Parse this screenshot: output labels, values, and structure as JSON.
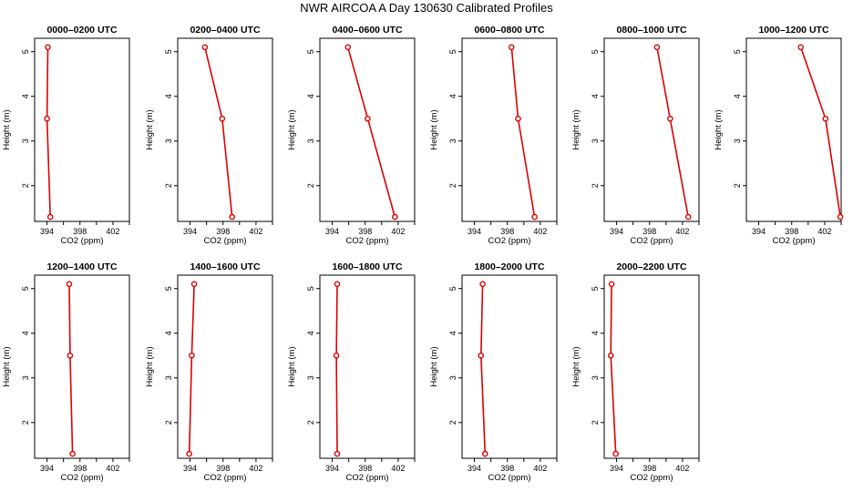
{
  "title": "NWR AIRCOA A  Day 130630  Calibrated Profiles",
  "colors": {
    "series": "#dd0000",
    "axis": "#000000"
  },
  "chart_data": [
    {
      "type": "line",
      "title": "0000–0200 UTC",
      "xlabel": "CO2 (ppm)",
      "ylabel": "Height (m)",
      "xlim": [
        392.5,
        404
      ],
      "ylim": [
        1.2,
        5.3
      ],
      "xticks": [
        394,
        398,
        402
      ],
      "yticks": [
        2,
        3,
        4,
        5
      ],
      "grid": false,
      "series": [
        {
          "x": [
            394.1,
            394.0,
            394.4
          ],
          "y": [
            5.1,
            3.5,
            1.3
          ]
        }
      ]
    },
    {
      "type": "line",
      "title": "0200–0400 UTC",
      "xlabel": "CO2 (ppm)",
      "ylabel": "Height (m)",
      "xlim": [
        392.5,
        404
      ],
      "ylim": [
        1.2,
        5.3
      ],
      "xticks": [
        394,
        398,
        402
      ],
      "yticks": [
        2,
        3,
        4,
        5
      ],
      "grid": false,
      "series": [
        {
          "x": [
            395.8,
            397.9,
            399.1
          ],
          "y": [
            5.1,
            3.5,
            1.3
          ]
        }
      ]
    },
    {
      "type": "line",
      "title": "0400–0600 UTC",
      "xlabel": "CO2 (ppm)",
      "ylabel": "Height (m)",
      "xlim": [
        392.5,
        404
      ],
      "ylim": [
        1.2,
        5.3
      ],
      "xticks": [
        394,
        398,
        402
      ],
      "yticks": [
        2,
        3,
        4,
        5
      ],
      "grid": false,
      "series": [
        {
          "x": [
            395.9,
            398.3,
            401.6
          ],
          "y": [
            5.1,
            3.5,
            1.3
          ]
        }
      ]
    },
    {
      "type": "line",
      "title": "0600–0800 UTC",
      "xlabel": "CO2 (ppm)",
      "ylabel": "Height (m)",
      "xlim": [
        392.5,
        404
      ],
      "ylim": [
        1.2,
        5.3
      ],
      "xticks": [
        394,
        398,
        402
      ],
      "yticks": [
        2,
        3,
        4,
        5
      ],
      "grid": false,
      "series": [
        {
          "x": [
            398.5,
            399.3,
            401.3
          ],
          "y": [
            5.1,
            3.5,
            1.3
          ]
        }
      ]
    },
    {
      "type": "line",
      "title": "0800–1000 UTC",
      "xlabel": "CO2 (ppm)",
      "ylabel": "Height (m)",
      "xlim": [
        392.5,
        404
      ],
      "ylim": [
        1.2,
        5.3
      ],
      "xticks": [
        394,
        398,
        402
      ],
      "yticks": [
        2,
        3,
        4,
        5
      ],
      "grid": false,
      "series": [
        {
          "x": [
            398.9,
            400.5,
            402.7
          ],
          "y": [
            5.1,
            3.5,
            1.3
          ]
        }
      ]
    },
    {
      "type": "line",
      "title": "1000–1200 UTC",
      "xlabel": "CO2 (ppm)",
      "ylabel": "Height (m)",
      "xlim": [
        392.5,
        404
      ],
      "ylim": [
        1.2,
        5.3
      ],
      "xticks": [
        394,
        398,
        402
      ],
      "yticks": [
        2,
        3,
        4,
        5
      ],
      "grid": false,
      "series": [
        {
          "x": [
            399.1,
            402.1,
            403.9
          ],
          "y": [
            5.1,
            3.5,
            1.3
          ]
        }
      ]
    },
    {
      "type": "line",
      "title": "1200–1400 UTC",
      "xlabel": "CO2 (ppm)",
      "ylabel": "Height (m)",
      "xlim": [
        392.5,
        404
      ],
      "ylim": [
        1.2,
        5.3
      ],
      "xticks": [
        394,
        398,
        402
      ],
      "yticks": [
        2,
        3,
        4,
        5
      ],
      "grid": false,
      "series": [
        {
          "x": [
            396.7,
            396.8,
            397.1
          ],
          "y": [
            5.1,
            3.5,
            1.3
          ]
        }
      ]
    },
    {
      "type": "line",
      "title": "1400–1600 UTC",
      "xlabel": "CO2 (ppm)",
      "ylabel": "Height (m)",
      "xlim": [
        392.5,
        404
      ],
      "ylim": [
        1.2,
        5.3
      ],
      "xticks": [
        394,
        398,
        402
      ],
      "yticks": [
        2,
        3,
        4,
        5
      ],
      "grid": false,
      "series": [
        {
          "x": [
            394.5,
            394.2,
            393.9
          ],
          "y": [
            5.1,
            3.5,
            1.3
          ]
        }
      ]
    },
    {
      "type": "line",
      "title": "1600–1800 UTC",
      "xlabel": "CO2 (ppm)",
      "ylabel": "Height (m)",
      "xlim": [
        392.5,
        404
      ],
      "ylim": [
        1.2,
        5.3
      ],
      "xticks": [
        394,
        398,
        402
      ],
      "yticks": [
        2,
        3,
        4,
        5
      ],
      "grid": false,
      "series": [
        {
          "x": [
            394.6,
            394.5,
            394.6
          ],
          "y": [
            5.1,
            3.5,
            1.3
          ]
        }
      ]
    },
    {
      "type": "line",
      "title": "1800–2000 UTC",
      "xlabel": "CO2 (ppm)",
      "ylabel": "Height (m)",
      "xlim": [
        392.5,
        404
      ],
      "ylim": [
        1.2,
        5.3
      ],
      "xticks": [
        394,
        398,
        402
      ],
      "yticks": [
        2,
        3,
        4,
        5
      ],
      "grid": false,
      "series": [
        {
          "x": [
            395.0,
            394.8,
            395.3
          ],
          "y": [
            5.1,
            3.5,
            1.3
          ]
        }
      ]
    },
    {
      "type": "line",
      "title": "2000–2200 UTC",
      "xlabel": "CO2 (ppm)",
      "ylabel": "Height (m)",
      "xlim": [
        392.5,
        404
      ],
      "ylim": [
        1.2,
        5.3
      ],
      "xticks": [
        394,
        398,
        402
      ],
      "yticks": [
        2,
        3,
        4,
        5
      ],
      "grid": false,
      "series": [
        {
          "x": [
            393.4,
            393.3,
            393.9
          ],
          "y": [
            5.1,
            3.5,
            1.3
          ]
        }
      ]
    }
  ]
}
